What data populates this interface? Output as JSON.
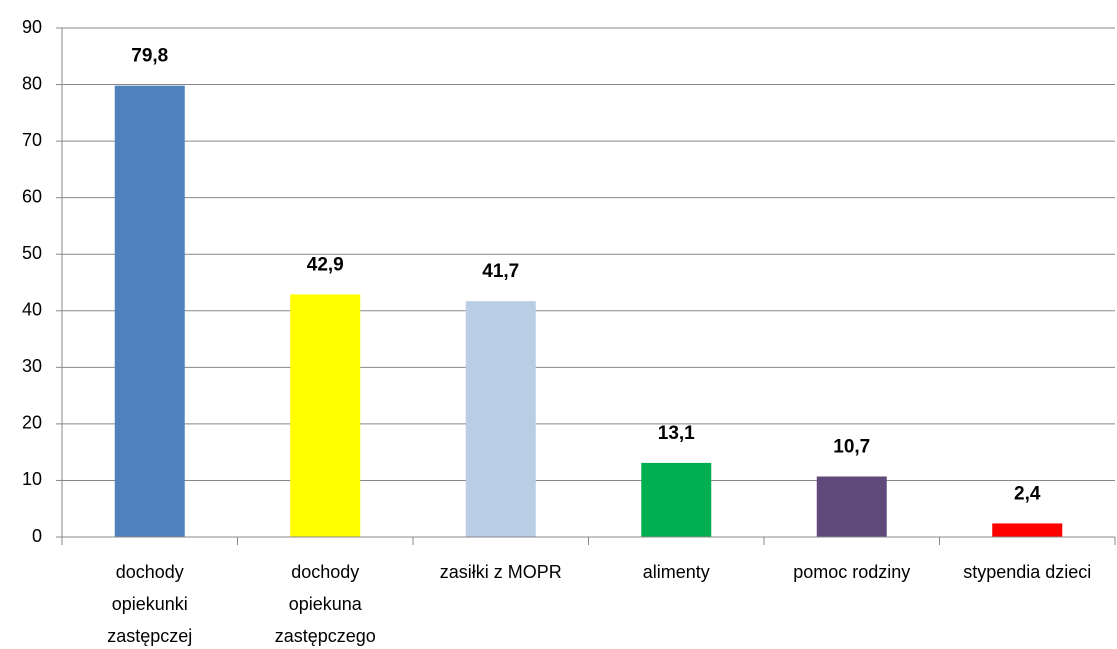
{
  "chart_data": {
    "type": "bar",
    "categories": [
      [
        "dochody",
        "opiekunki",
        "zastępczej"
      ],
      [
        "dochody",
        "opiekuna",
        "zastępczego"
      ],
      [
        "zasiłki z MOPR"
      ],
      [
        "alimenty"
      ],
      [
        "pomoc rodziny"
      ],
      [
        "stypendia dzieci"
      ]
    ],
    "values": [
      79.8,
      42.9,
      41.7,
      13.1,
      10.7,
      2.4
    ],
    "value_labels": [
      "79,8",
      "42,9",
      "41,7",
      "13,1",
      "10,7",
      "2,4"
    ],
    "colors": [
      "#4f81bd",
      "#ffff00",
      "#b9cde5",
      "#00b050",
      "#604a7b",
      "#ff0000"
    ],
    "ylim": [
      0,
      90
    ],
    "yticks": [
      0,
      10,
      20,
      30,
      40,
      50,
      60,
      70,
      80,
      90
    ],
    "grid": true
  }
}
